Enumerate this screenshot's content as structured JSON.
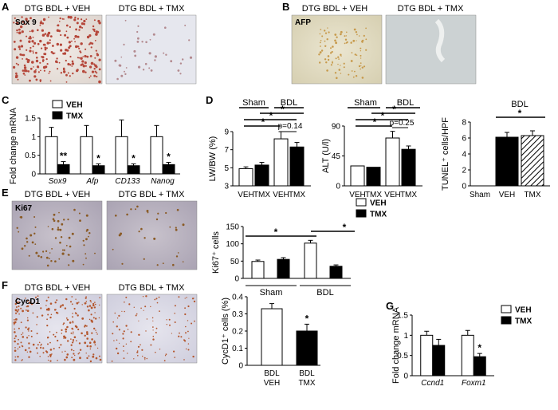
{
  "panels": {
    "A": {
      "letter": "A",
      "left_title": "DTG BDL + VEH",
      "right_title": "DTG BDL + TMX",
      "stain_label": "Sox 9"
    },
    "B": {
      "letter": "B",
      "left_title": "DTG BDL + VEH",
      "right_title": "DTG BDL + TMX",
      "stain_label": "AFP"
    },
    "C": {
      "letter": "C"
    },
    "D": {
      "letter": "D"
    },
    "E": {
      "letter": "E",
      "left_title": "DTG BDL + VEH",
      "right_title": "DTG BDL + TMX",
      "stain_label": "Ki67"
    },
    "F": {
      "letter": "F",
      "left_title": "DTG BDL + VEH",
      "right_title": "DTG BDL + TMX",
      "stain_label": "CycD1"
    },
    "G": {
      "letter": "G"
    }
  },
  "colors": {
    "veh": "#ffffff",
    "tmx": "#000000",
    "sox9_tissue": "#e9e3df",
    "afp_tissue": "#e2dcc4",
    "ki67_tissue": "#b9b3c1",
    "cycd1_tissue": "#dcdbe6"
  },
  "chart_data": [
    {
      "id": "C",
      "type": "bar",
      "ylabel": "Fold change mRNA",
      "categories": [
        "Sox9",
        "Afp",
        "CD133",
        "Nanog"
      ],
      "series": [
        {
          "name": "VEH",
          "values": [
            1.0,
            1.0,
            1.0,
            1.0
          ],
          "errors": [
            0.25,
            0.3,
            0.45,
            0.3
          ]
        },
        {
          "name": "TMX",
          "values": [
            0.25,
            0.22,
            0.22,
            0.25
          ],
          "errors": [
            0.08,
            0.05,
            0.05,
            0.06
          ]
        }
      ],
      "ylim": [
        0,
        1.5
      ],
      "yticks": [
        "0",
        "0.5",
        "1",
        "1.5"
      ],
      "significance": [
        "**",
        "*",
        "*",
        "*"
      ],
      "legend": [
        "VEH",
        "TMX"
      ]
    },
    {
      "id": "D1",
      "type": "bar",
      "ylabel": "LW/BW (%)",
      "categories": [
        "VEH",
        "TMX",
        "VEH",
        "TMX"
      ],
      "groups": [
        "Sham",
        "BDL"
      ],
      "values": [
        4.9,
        5.3,
        8.2,
        7.3
      ],
      "errors": [
        0.2,
        0.3,
        0.8,
        0.5
      ],
      "fills": [
        "VEH",
        "TMX",
        "VEH",
        "TMX"
      ],
      "ylim": [
        3,
        9
      ],
      "yticks": [
        "3",
        "5",
        "7",
        "9"
      ],
      "pvalue": "p=0.14",
      "stars": [
        "*",
        "*",
        "*"
      ]
    },
    {
      "id": "D2",
      "type": "bar",
      "ylabel": "ALT (U/l)",
      "categories": [
        "VEH",
        "TMX",
        "VEH",
        "TMX"
      ],
      "groups": [
        "Sham",
        "BDL"
      ],
      "values": [
        30,
        28,
        72,
        55
      ],
      "errors": [
        0,
        0,
        10,
        5
      ],
      "fills": [
        "VEH",
        "TMX",
        "VEH",
        "TMX"
      ],
      "ylim": [
        0,
        90
      ],
      "yticks": [
        "0",
        "45",
        "90"
      ],
      "pvalue": "p=0.25",
      "stars": [
        "*",
        "*",
        "*"
      ]
    },
    {
      "id": "D3",
      "type": "bar",
      "ylabel": "TUNEL⁺ cells/HPF",
      "categories": [
        "Sham",
        "VEH",
        "TMX"
      ],
      "groups": [
        "BDL"
      ],
      "values": [
        0,
        6.1,
        6.3
      ],
      "errors": [
        0,
        0.6,
        0.6
      ],
      "fills": [
        "none",
        "TMX",
        "hatched"
      ],
      "ylim": [
        0,
        8
      ],
      "yticks": [
        "0",
        "2",
        "4",
        "6",
        "8"
      ],
      "stars": [
        "*"
      ]
    },
    {
      "id": "E",
      "type": "bar",
      "ylabel": "Ki67⁺ cells",
      "categories": [
        "VEH",
        "TMX",
        "VEH",
        "TMX"
      ],
      "groups": [
        "Sham",
        "BDL"
      ],
      "values": [
        49,
        55,
        102,
        35
      ],
      "errors": [
        4,
        5,
        8,
        4
      ],
      "fills": [
        "VEH",
        "TMX",
        "VEH",
        "TMX"
      ],
      "ylim": [
        0,
        150
      ],
      "yticks": [
        "0",
        "50",
        "100",
        "150"
      ],
      "stars": [
        "*",
        "*"
      ],
      "legend": [
        "VEH",
        "TMX"
      ]
    },
    {
      "id": "F",
      "type": "bar",
      "ylabel": "CycD1⁺ cells (%)",
      "categories": [
        "BDL VEH",
        "BDL TMX"
      ],
      "cat_lines": [
        [
          "BDL",
          "VEH"
        ],
        [
          "BDL",
          "TMX"
        ]
      ],
      "values": [
        0.33,
        0.2
      ],
      "errors": [
        0.03,
        0.04
      ],
      "fills": [
        "VEH",
        "TMX"
      ],
      "ylim": [
        0,
        0.4
      ],
      "yticks": [
        "0",
        "0.1",
        "0.2",
        "0.3",
        "0.4"
      ],
      "stars": [
        "*"
      ]
    },
    {
      "id": "G",
      "type": "bar",
      "ylabel": "Fold change mRNA",
      "categories": [
        "Ccnd1",
        "Foxm1"
      ],
      "series": [
        {
          "name": "VEH",
          "values": [
            1.0,
            1.0
          ],
          "errors": [
            0.1,
            0.12
          ]
        },
        {
          "name": "TMX",
          "values": [
            0.75,
            0.47
          ],
          "errors": [
            0.15,
            0.08
          ]
        }
      ],
      "ylim": [
        0,
        1.5
      ],
      "yticks": [
        "0",
        "0.5",
        "1",
        "1.5"
      ],
      "significance": [
        "",
        "*"
      ],
      "legend": [
        "VEH",
        "TMX"
      ]
    }
  ]
}
